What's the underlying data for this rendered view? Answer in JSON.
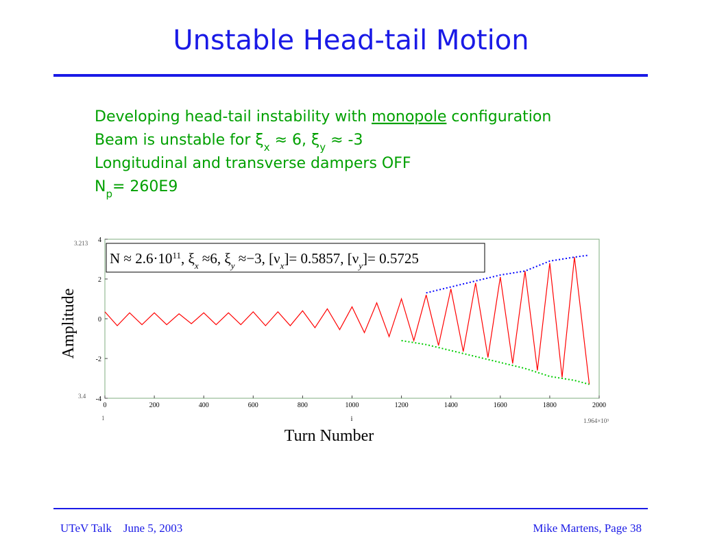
{
  "title": "Unstable Head-tail Motion",
  "bullets": [
    [
      "Developing head-tail instability with ",
      "monopole",
      " configuration"
    ],
    [
      "Beam is unstable for ξ",
      "x",
      " ≈ 6, ξ",
      "y",
      " ≈ -3"
    ],
    [
      "Longitudinal and transverse dampers OFF"
    ],
    [
      "N",
      "p",
      "= 260E9"
    ]
  ],
  "footer": {
    "left": "UTeV Talk    June 5, 2003",
    "right": "Mike Martens, Page 38"
  },
  "chart_data": {
    "type": "line",
    "ylabel": "Amplitude",
    "xlabel": "Turn Number",
    "xvar": "i",
    "edge_labels": {
      "ytop": "3.213",
      "ybottom": "3.4",
      "xstart": "1",
      "xend": "1.964×10³"
    },
    "annotation": [
      "N ≈ 2.6·10",
      "11",
      ", ξ",
      "x",
      " ≈6, ξ",
      "y",
      " ≈−3, [ν",
      "x",
      "]= 0.5857, [ν",
      "y",
      "]= 0.5725"
    ],
    "xlim": [
      0,
      2000
    ],
    "xticks": [
      0,
      200,
      400,
      600,
      800,
      1000,
      1200,
      1400,
      1600,
      1800,
      2000
    ],
    "ylim": [
      -4,
      4
    ],
    "yticks": [
      -4,
      -2,
      0,
      2,
      4
    ],
    "series": [
      {
        "color": "#ff0000",
        "style": "solid",
        "x": [
          0,
          50,
          100,
          150,
          200,
          250,
          300,
          350,
          400,
          450,
          500,
          550,
          600,
          650,
          700,
          750,
          800,
          850,
          900,
          950,
          1000,
          1050,
          1100,
          1150,
          1200,
          1250,
          1300,
          1350,
          1400,
          1450,
          1500,
          1550,
          1600,
          1650,
          1700,
          1750,
          1800,
          1850,
          1900,
          1960
        ],
        "values": [
          0.35,
          -0.35,
          0.3,
          -0.3,
          0.3,
          -0.3,
          0.25,
          -0.25,
          0.3,
          -0.3,
          0.3,
          -0.3,
          0.35,
          -0.35,
          0.35,
          -0.35,
          0.4,
          -0.45,
          0.5,
          -0.55,
          0.6,
          -0.7,
          0.8,
          -0.9,
          1.0,
          -1.1,
          1.2,
          -1.35,
          1.5,
          -1.65,
          1.8,
          -1.95,
          2.1,
          -2.25,
          2.4,
          -2.6,
          2.8,
          -2.95,
          3.1,
          -3.3
        ]
      },
      {
        "color": "#00cc00",
        "style": "dotted",
        "x": [
          1200,
          1300,
          1400,
          1500,
          1600,
          1700,
          1800,
          1900,
          1960
        ],
        "values": [
          -1.1,
          -1.3,
          -1.6,
          -1.9,
          -2.2,
          -2.5,
          -2.9,
          -3.1,
          -3.3
        ]
      },
      {
        "color": "#0000ff",
        "style": "dotted",
        "x": [
          1300,
          1400,
          1500,
          1600,
          1700,
          1800,
          1900,
          1960
        ],
        "values": [
          1.3,
          1.6,
          1.9,
          2.2,
          2.4,
          2.9,
          3.1,
          3.2
        ]
      }
    ]
  }
}
